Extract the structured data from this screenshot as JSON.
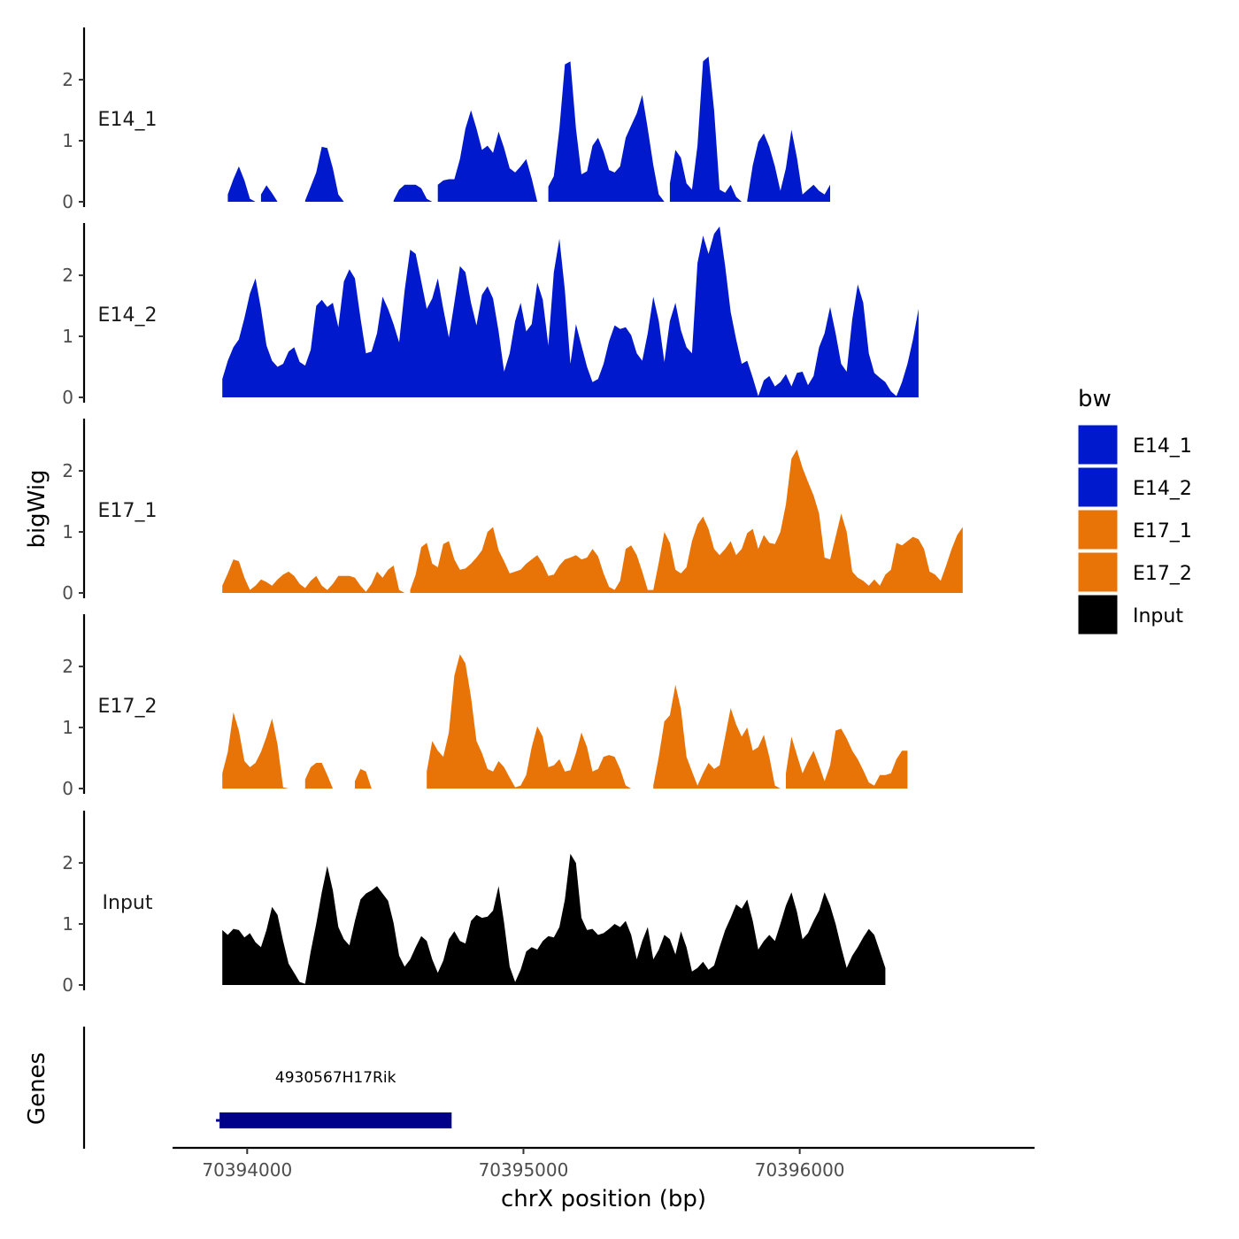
{
  "chart_data": {
    "type": "area",
    "title": "",
    "ylabel": "bigWig",
    "xlabel": "chrX position (bp)",
    "ylim": [
      0,
      2.9
    ],
    "yticks": [
      0,
      1,
      2
    ],
    "xlim": [
      70393730,
      70396850
    ],
    "xticks": [
      70394000,
      70395000,
      70396000
    ],
    "x_start": 70393910,
    "x_step": 20,
    "colors": {
      "E14_1": "#0019CC",
      "E14_2": "#0019CC",
      "E17_1": "#E87407",
      "E17_2": "#E87407",
      "Input": "#000000",
      "gene": "#00008B"
    },
    "series": [
      {
        "name": "E14_1",
        "values": [
          0,
          0.12,
          0.37,
          0.58,
          0.35,
          0.05,
          0,
          0.12,
          0.27,
          0.14,
          0,
          0,
          0,
          0,
          0,
          0.02,
          0.25,
          0.48,
          0.9,
          0.88,
          0.55,
          0.12,
          0,
          0,
          0,
          0,
          0,
          0,
          0,
          0,
          0,
          0.02,
          0.2,
          0.28,
          0.28,
          0.28,
          0.22,
          0.05,
          0,
          0.28,
          0.35,
          0.37,
          0.37,
          0.7,
          1.2,
          1.5,
          1.2,
          0.85,
          0.92,
          0.8,
          1.15,
          0.88,
          0.55,
          0.48,
          0.58,
          0.7,
          0.38,
          0,
          0,
          0.25,
          0.42,
          1.2,
          2.25,
          2.3,
          1.2,
          0.45,
          0.5,
          0.92,
          1.05,
          0.82,
          0.52,
          0.48,
          0.58,
          1.05,
          1.25,
          1.45,
          1.75,
          1.2,
          0.6,
          0.12,
          0,
          0.3,
          0.85,
          0.72,
          0.3,
          0.2,
          0.92,
          2.3,
          2.38,
          1.5,
          0.2,
          0.15,
          0.28,
          0.08,
          0,
          0.02,
          0.6,
          0.98,
          1.12,
          0.9,
          0.58,
          0.18,
          0.55,
          1.18,
          0.72,
          0.12,
          0.2,
          0.28,
          0.18,
          0.12,
          0.28
        ]
      },
      {
        "name": "E14_2",
        "values": [
          0.3,
          0.6,
          0.82,
          0.95,
          1.3,
          1.7,
          1.95,
          1.45,
          0.85,
          0.6,
          0.5,
          0.55,
          0.75,
          0.82,
          0.58,
          0.52,
          0.78,
          1.5,
          1.6,
          1.48,
          1.55,
          1.15,
          1.9,
          2.1,
          1.95,
          1.3,
          0.72,
          0.75,
          1.05,
          1.65,
          1.45,
          1.2,
          0.9,
          1.75,
          2.42,
          2.35,
          1.9,
          1.45,
          1.62,
          1.95,
          1.45,
          0.98,
          1.55,
          2.15,
          2.05,
          1.55,
          1.18,
          1.68,
          1.82,
          1.62,
          1.08,
          0.42,
          0.72,
          1.25,
          1.55,
          1.08,
          1.2,
          1.88,
          1.6,
          0.85,
          2.05,
          2.6,
          1.75,
          0.55,
          1.2,
          0.85,
          0.5,
          0.25,
          0.3,
          0.55,
          0.92,
          1.18,
          1.12,
          1.15,
          1.02,
          0.72,
          0.6,
          1.05,
          1.65,
          1.25,
          0.58,
          1.25,
          1.55,
          1.1,
          0.82,
          0.72,
          2.2,
          2.65,
          2.35,
          2.68,
          2.8,
          2.15,
          1.4,
          0.95,
          0.55,
          0.6,
          0.32,
          0.02,
          0.28,
          0.35,
          0.18,
          0.25,
          0.38,
          0.18,
          0.4,
          0.42,
          0.2,
          0.35,
          0.82,
          1.05,
          1.48,
          1.05,
          0.55,
          0.42,
          1.28,
          1.85,
          1.55,
          0.72,
          0.4,
          0.32,
          0.25,
          0.1,
          0.02,
          0.25,
          0.55,
          0.95,
          1.45
        ]
      },
      {
        "name": "E17_1",
        "values": [
          0.12,
          0.32,
          0.55,
          0.52,
          0.25,
          0.05,
          0.12,
          0.22,
          0.18,
          0.12,
          0.22,
          0.3,
          0.35,
          0.28,
          0.15,
          0.08,
          0.2,
          0.28,
          0.12,
          0.05,
          0.15,
          0.28,
          0.28,
          0.28,
          0.25,
          0.12,
          0.02,
          0.15,
          0.35,
          0.25,
          0.38,
          0.45,
          0.05,
          0,
          0.05,
          0.3,
          0.75,
          0.82,
          0.48,
          0.42,
          0.8,
          0.85,
          0.55,
          0.38,
          0.4,
          0.48,
          0.58,
          0.7,
          1.0,
          1.08,
          0.7,
          0.52,
          0.32,
          0.35,
          0.38,
          0.48,
          0.55,
          0.62,
          0.48,
          0.28,
          0.3,
          0.45,
          0.55,
          0.58,
          0.62,
          0.55,
          0.58,
          0.72,
          0.6,
          0.32,
          0.1,
          0.05,
          0.2,
          0.72,
          0.78,
          0.62,
          0.35,
          0.05,
          0.05,
          0.5,
          1.0,
          0.82,
          0.38,
          0.32,
          0.42,
          0.85,
          1.12,
          1.25,
          1.05,
          0.72,
          0.62,
          0.72,
          0.85,
          0.62,
          0.72,
          0.98,
          1.05,
          0.72,
          0.95,
          0.82,
          0.8,
          1.0,
          1.45,
          2.2,
          2.35,
          2.05,
          1.82,
          1.6,
          1.3,
          0.58,
          0.55,
          0.92,
          1.3,
          1.0,
          0.35,
          0.25,
          0.2,
          0.12,
          0.22,
          0.12,
          0.3,
          0.38,
          0.82,
          0.78,
          0.85,
          0.92,
          0.88,
          0.72,
          0.35,
          0.3,
          0.2,
          0.45,
          0.72,
          0.95,
          1.08
        ]
      },
      {
        "name": "E17_2",
        "values": [
          0.25,
          0.6,
          1.25,
          0.95,
          0.45,
          0.35,
          0.42,
          0.6,
          0.85,
          1.15,
          0.72,
          0.02,
          0,
          0,
          0,
          0.15,
          0.35,
          0.42,
          0.42,
          0.22,
          0,
          0,
          0,
          0,
          0.12,
          0.32,
          0.28,
          0,
          0,
          0,
          0,
          0,
          0,
          0,
          0,
          0,
          0,
          0.28,
          0.78,
          0.62,
          0.52,
          0.92,
          1.85,
          2.2,
          2.05,
          1.5,
          0.78,
          0.58,
          0.32,
          0.28,
          0.45,
          0.35,
          0.18,
          0.02,
          0.05,
          0.22,
          0.68,
          1.02,
          0.85,
          0.35,
          0.38,
          0.48,
          0.28,
          0.3,
          0.58,
          0.92,
          0.68,
          0.28,
          0.32,
          0.52,
          0.55,
          0.52,
          0.32,
          0.05,
          0,
          0,
          0,
          0,
          0.05,
          0.52,
          1.1,
          1.2,
          1.7,
          1.3,
          0.52,
          0.28,
          0.05,
          0.25,
          0.42,
          0.32,
          0.38,
          0.85,
          1.32,
          1.05,
          0.85,
          1.0,
          0.62,
          0.68,
          0.88,
          0.52,
          0.05,
          0,
          0.25,
          0.85,
          0.55,
          0.25,
          0.45,
          0.62,
          0.38,
          0.12,
          0.38,
          0.95,
          0.98,
          0.82,
          0.62,
          0.48,
          0.3,
          0.1,
          0.05,
          0.22,
          0.22,
          0.25,
          0.48,
          0.62,
          0.62
        ]
      },
      {
        "name": "Input",
        "values": [
          0.9,
          0.82,
          0.92,
          0.9,
          0.78,
          0.85,
          0.7,
          0.62,
          0.9,
          1.28,
          1.15,
          0.72,
          0.35,
          0.2,
          0.05,
          0.02,
          0.55,
          1.0,
          1.52,
          1.95,
          1.55,
          0.95,
          0.75,
          0.65,
          1.05,
          1.4,
          1.5,
          1.55,
          1.62,
          1.5,
          1.38,
          1.02,
          0.48,
          0.3,
          0.42,
          0.62,
          0.8,
          0.72,
          0.42,
          0.2,
          0.4,
          0.75,
          0.88,
          0.72,
          0.68,
          1.05,
          1.15,
          1.1,
          1.12,
          1.22,
          1.62,
          1.02,
          0.3,
          0.05,
          0.25,
          0.55,
          0.62,
          0.58,
          0.72,
          0.8,
          0.78,
          0.95,
          1.4,
          2.15,
          2.0,
          1.1,
          0.9,
          0.92,
          0.82,
          0.85,
          0.92,
          1.0,
          0.95,
          1.05,
          0.82,
          0.42,
          0.72,
          0.95,
          0.42,
          0.58,
          0.82,
          0.75,
          0.5,
          0.88,
          0.62,
          0.22,
          0.28,
          0.38,
          0.25,
          0.32,
          0.62,
          0.9,
          1.1,
          1.32,
          1.25,
          1.4,
          1.05,
          0.58,
          0.72,
          0.82,
          0.72,
          1.0,
          1.3,
          1.52,
          1.2,
          0.75,
          0.85,
          1.05,
          1.22,
          1.52,
          1.3,
          1.0,
          0.62,
          0.28,
          0.48,
          0.62,
          0.78,
          0.92,
          0.82,
          0.55,
          0.28
        ]
      }
    ],
    "genes": [
      {
        "name": "4930567H17Rik",
        "start": 70393900,
        "end": 70394740,
        "strand": "-"
      }
    ],
    "gene_track_label": "Genes",
    "legend": {
      "title": "bw",
      "position": "right",
      "entries": [
        "E14_1",
        "E14_2",
        "E17_1",
        "E17_2",
        "Input"
      ]
    }
  }
}
